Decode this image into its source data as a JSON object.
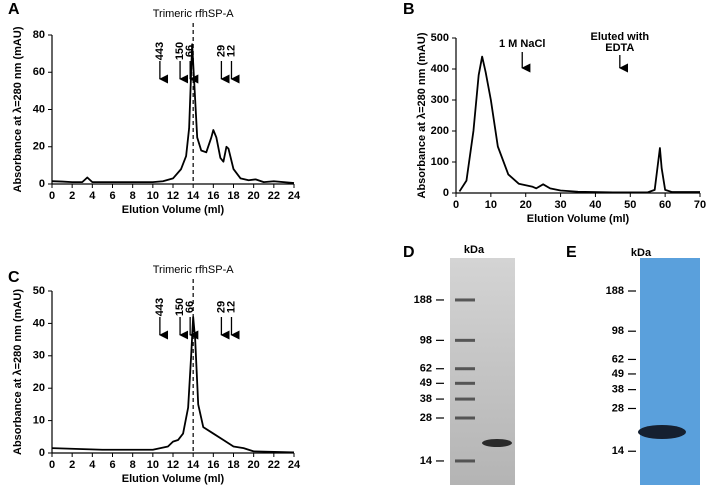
{
  "chart_data": [
    {
      "type": "line",
      "panel": "A",
      "xlabel": "Elution Volume (ml)",
      "ylabel": "Absorbance  at λ=280 nm (mAU)",
      "x": [
        0,
        1,
        2,
        3,
        3.5,
        4,
        6,
        8,
        10,
        11,
        12,
        12.8,
        13.3,
        13.6,
        13.9,
        14.1,
        14.4,
        14.8,
        15.3,
        15.8,
        16,
        16.3,
        16.7,
        17,
        17.3,
        17.5,
        18,
        18.7,
        19.5,
        20.2,
        21,
        22,
        24
      ],
      "series": [
        {
          "color": "#000000",
          "values": [
            1.5,
            1.3,
            1,
            1,
            3.5,
            1,
            1,
            1,
            1,
            1.5,
            3,
            8,
            15,
            30,
            75,
            55,
            25,
            18,
            17,
            25,
            29,
            25,
            14,
            12,
            20,
            19,
            8,
            3,
            2,
            2.5,
            1,
            1.5,
            0.5
          ]
        }
      ],
      "xlim": [
        0,
        24
      ],
      "xticks": [
        0,
        2,
        4,
        6,
        8,
        10,
        12,
        14,
        16,
        18,
        20,
        22,
        24
      ],
      "ylim": [
        0,
        80
      ],
      "yticks": [
        0,
        20,
        40,
        60,
        80
      ],
      "reference_line": {
        "x": 14,
        "label": "Trimeric rfhSP-A"
      },
      "markers": [
        {
          "x": 10.7,
          "label": "443"
        },
        {
          "x": 12.7,
          "label": "150"
        },
        {
          "x": 13.7,
          "label": "66"
        },
        {
          "x": 16.8,
          "label": "29"
        },
        {
          "x": 17.8,
          "label": "12"
        }
      ]
    },
    {
      "type": "line",
      "panel": "B",
      "xlabel": "Elution Volume (ml)",
      "ylabel": "Absorbance  at λ=280 nm (mAU)",
      "x": [
        1,
        3,
        5,
        6.5,
        7.5,
        8.5,
        10,
        12,
        15,
        18,
        22,
        23,
        25,
        27,
        30,
        35,
        45,
        55,
        57,
        58.5,
        59,
        60,
        62,
        70
      ],
      "series": [
        {
          "color": "#000000",
          "values": [
            5,
            40,
            200,
            380,
            440,
            390,
            300,
            150,
            60,
            30,
            20,
            15,
            28,
            15,
            8,
            4,
            2,
            2,
            10,
            145,
            80,
            10,
            3,
            3
          ]
        }
      ],
      "xlim": [
        0,
        70
      ],
      "xticks": [
        0,
        10,
        20,
        30,
        40,
        50,
        60,
        70
      ],
      "ylim": [
        0,
        500
      ],
      "yticks": [
        0,
        100,
        200,
        300,
        400,
        500
      ],
      "markers": [
        {
          "x": 19,
          "label": "1 M NaCl"
        },
        {
          "x": 47,
          "label": [
            "Eluted with",
            "EDTA"
          ]
        }
      ]
    },
    {
      "type": "line",
      "panel": "C",
      "xlabel": "Elution Volume (ml)",
      "ylabel": "Absorbance  at λ=280 nm (mAU)",
      "x": [
        0,
        5,
        10,
        11.5,
        12,
        12.5,
        13,
        13.5,
        13.8,
        14,
        14.2,
        14.5,
        15,
        16,
        17,
        18,
        19,
        20,
        24
      ],
      "series": [
        {
          "color": "#000000",
          "values": [
            1.5,
            1,
            1,
            2,
            3.5,
            4,
            6,
            14,
            30,
            42,
            35,
            15,
            8,
            6,
            4,
            2,
            1.5,
            0.5,
            0.2
          ]
        }
      ],
      "xlim": [
        0,
        24
      ],
      "xticks": [
        0,
        2,
        4,
        6,
        8,
        10,
        12,
        14,
        16,
        18,
        20,
        22,
        24
      ],
      "ylim": [
        0,
        50
      ],
      "yticks": [
        0,
        10,
        20,
        30,
        40,
        50
      ],
      "reference_line": {
        "x": 14,
        "label": "Trimeric rfhSP-A"
      },
      "markers": [
        {
          "x": 10.7,
          "label": "443"
        },
        {
          "x": 12.7,
          "label": "150"
        },
        {
          "x": 13.7,
          "label": "66"
        },
        {
          "x": 16.8,
          "label": "29"
        },
        {
          "x": 17.8,
          "label": "12"
        }
      ]
    },
    {
      "type": "gel",
      "panel": "D",
      "ylabel": "kDa",
      "log_scale": true,
      "color": "#c4c4c4",
      "ylim": [
        9.5,
        370
      ],
      "yticks": [
        188,
        98,
        62,
        49,
        38,
        28,
        14
      ]
    },
    {
      "type": "gel",
      "panel": "E",
      "ylabel": "kDa",
      "log_scale": true,
      "color": "#5aa0dc",
      "ylim": [
        8.1,
        321
      ],
      "yticks": [
        188,
        98,
        62,
        49,
        38,
        28,
        14
      ]
    }
  ]
}
